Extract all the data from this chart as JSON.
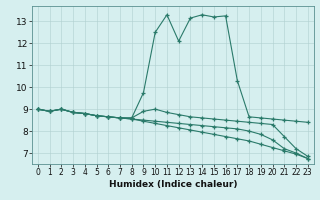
{
  "xlabel": "Humidex (Indice chaleur)",
  "background_color": "#d6efef",
  "line_color": "#2a7a6a",
  "xlim": [
    -0.5,
    23.5
  ],
  "ylim": [
    6.5,
    13.7
  ],
  "yticks": [
    7,
    8,
    9,
    10,
    11,
    12,
    13
  ],
  "xticks": [
    0,
    1,
    2,
    3,
    4,
    5,
    6,
    7,
    8,
    9,
    10,
    11,
    12,
    13,
    14,
    15,
    16,
    17,
    18,
    19,
    20,
    21,
    22,
    23
  ],
  "line1_x": [
    0,
    1,
    2,
    3,
    4,
    5,
    6,
    7,
    8,
    9,
    10,
    11,
    12,
    13,
    14,
    15,
    16,
    17,
    18,
    19,
    20,
    21,
    22,
    23
  ],
  "line1_y": [
    9.0,
    8.9,
    9.0,
    8.85,
    8.8,
    8.7,
    8.65,
    8.6,
    8.6,
    9.75,
    12.5,
    13.3,
    12.1,
    13.15,
    13.3,
    13.2,
    13.25,
    10.3,
    8.65,
    8.6,
    8.55,
    8.5,
    8.45,
    8.4
  ],
  "line2_x": [
    0,
    1,
    2,
    3,
    4,
    5,
    6,
    7,
    8,
    9,
    10,
    11,
    12,
    13,
    14,
    15,
    16,
    17,
    18,
    19,
    20,
    21,
    22,
    23
  ],
  "line2_y": [
    9.0,
    8.9,
    9.0,
    8.85,
    8.8,
    8.7,
    8.65,
    8.6,
    8.6,
    8.9,
    9.0,
    8.85,
    8.75,
    8.65,
    8.6,
    8.55,
    8.5,
    8.45,
    8.4,
    8.35,
    8.3,
    7.75,
    7.2,
    6.85
  ],
  "line3_x": [
    0,
    1,
    2,
    3,
    4,
    5,
    6,
    7,
    8,
    9,
    10,
    11,
    12,
    13,
    14,
    15,
    16,
    17,
    18,
    19,
    20,
    21,
    22,
    23
  ],
  "line3_y": [
    9.0,
    8.9,
    9.0,
    8.85,
    8.8,
    8.7,
    8.65,
    8.6,
    8.55,
    8.5,
    8.45,
    8.4,
    8.35,
    8.3,
    8.25,
    8.2,
    8.15,
    8.1,
    8.0,
    7.85,
    7.6,
    7.2,
    7.0,
    6.75
  ],
  "line4_x": [
    0,
    1,
    2,
    3,
    4,
    5,
    6,
    7,
    8,
    9,
    10,
    11,
    12,
    13,
    14,
    15,
    16,
    17,
    18,
    19,
    20,
    21,
    22,
    23
  ],
  "line4_y": [
    9.0,
    8.9,
    9.0,
    8.85,
    8.8,
    8.7,
    8.65,
    8.6,
    8.55,
    8.45,
    8.35,
    8.25,
    8.15,
    8.05,
    7.95,
    7.85,
    7.75,
    7.65,
    7.55,
    7.4,
    7.25,
    7.1,
    6.95,
    6.75
  ]
}
